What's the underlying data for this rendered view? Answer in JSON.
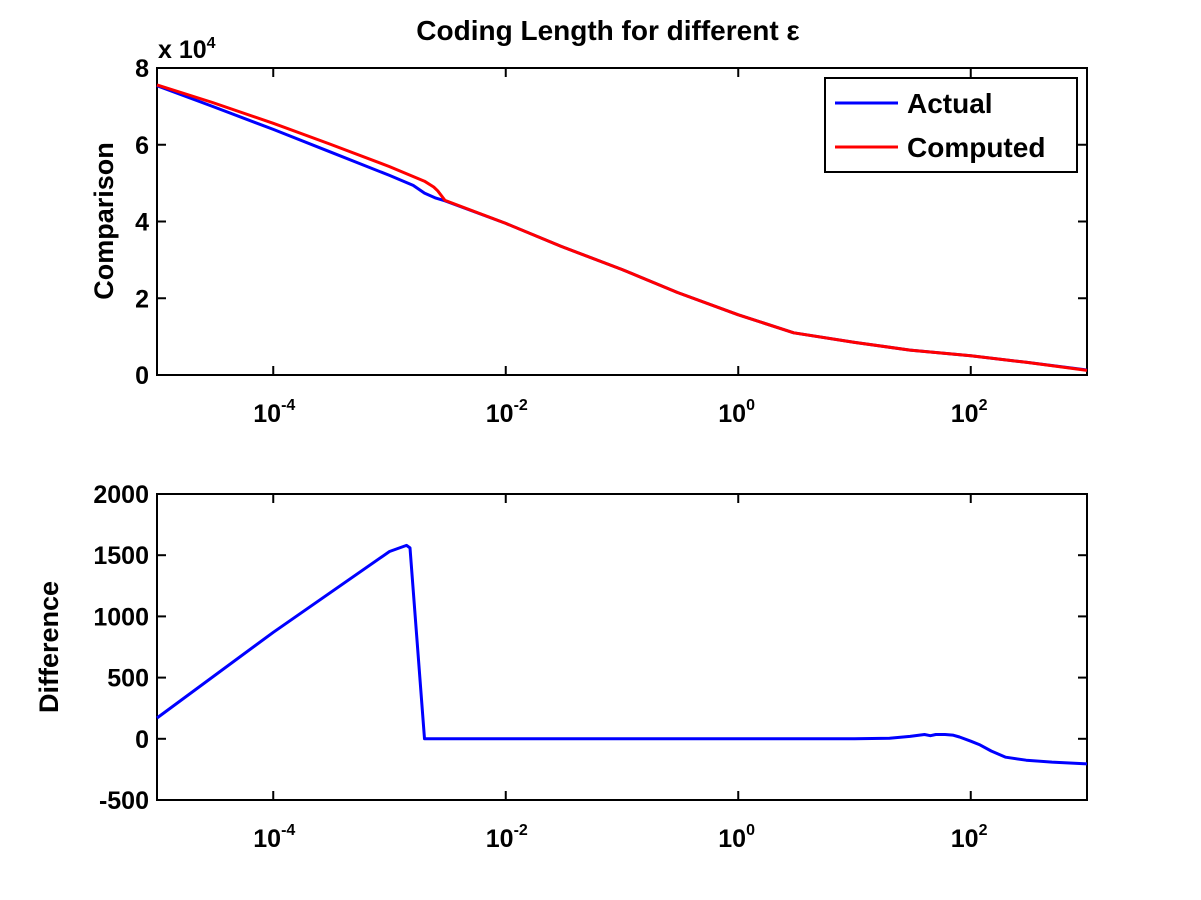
{
  "chart_data": [
    {
      "type": "line",
      "title": "Coding Length for different ε",
      "ylabel": "Comparison",
      "xlabel": "",
      "xscale": "log",
      "xlim": [
        1e-05,
        1000
      ],
      "ylim": [
        0,
        80000
      ],
      "y_multiplier_label": "x 10",
      "y_multiplier_exponent": "4",
      "x_ticks": [
        {
          "value": 0.0001,
          "base": "10",
          "exp": "-4"
        },
        {
          "value": 0.01,
          "base": "10",
          "exp": "-2"
        },
        {
          "value": 1,
          "base": "10",
          "exp": "0"
        },
        {
          "value": 100,
          "base": "10",
          "exp": "2"
        }
      ],
      "y_ticks": [
        {
          "value": 0,
          "label": "0"
        },
        {
          "value": 20000,
          "label": "2"
        },
        {
          "value": 40000,
          "label": "4"
        },
        {
          "value": 60000,
          "label": "6"
        },
        {
          "value": 80000,
          "label": "8"
        }
      ],
      "legend": {
        "placement": "top-right"
      },
      "grid": false,
      "series": [
        {
          "name": "Actual",
          "color": "#0000ff",
          "points": [
            [
              1e-05,
              75400
            ],
            [
              3e-05,
              70000
            ],
            [
              0.0001,
              64000
            ],
            [
              0.0003,
              58300
            ],
            [
              0.001,
              52000
            ],
            [
              0.0016,
              49400
            ],
            [
              0.002,
              47400
            ],
            [
              0.0025,
              46100
            ],
            [
              0.003,
              45400
            ],
            [
              0.01,
              39500
            ],
            [
              0.03,
              33500
            ],
            [
              0.1,
              27500
            ],
            [
              0.3,
              21500
            ],
            [
              1,
              15700
            ],
            [
              3,
              11000
            ],
            [
              10,
              8500
            ],
            [
              30,
              6500
            ],
            [
              100,
              5000
            ],
            [
              300,
              3300
            ],
            [
              1000,
              1300
            ]
          ]
        },
        {
          "name": "Computed",
          "color": "#ff0000",
          "points": [
            [
              1e-05,
              75600
            ],
            [
              3e-05,
              71000
            ],
            [
              0.0001,
              65600
            ],
            [
              0.0003,
              60300
            ],
            [
              0.001,
              54300
            ],
            [
              0.002,
              50500
            ],
            [
              0.0024,
              49000
            ],
            [
              0.0026,
              48000
            ],
            [
              0.003,
              45500
            ],
            [
              0.01,
              39500
            ],
            [
              0.03,
              33500
            ],
            [
              0.1,
              27500
            ],
            [
              0.3,
              21500
            ],
            [
              1,
              15700
            ],
            [
              3,
              11000
            ],
            [
              10,
              8500
            ],
            [
              30,
              6500
            ],
            [
              100,
              5000
            ],
            [
              300,
              3300
            ],
            [
              1000,
              1200
            ]
          ]
        }
      ]
    },
    {
      "type": "line",
      "title": "",
      "ylabel": "Difference",
      "xlabel": "",
      "xscale": "log",
      "xlim": [
        1e-05,
        1000
      ],
      "ylim": [
        -500,
        2000
      ],
      "x_ticks": [
        {
          "value": 0.0001,
          "base": "10",
          "exp": "-4"
        },
        {
          "value": 0.01,
          "base": "10",
          "exp": "-2"
        },
        {
          "value": 1,
          "base": "10",
          "exp": "0"
        },
        {
          "value": 100,
          "base": "10",
          "exp": "2"
        }
      ],
      "y_ticks": [
        {
          "value": -500,
          "label": "-500"
        },
        {
          "value": 0,
          "label": "0"
        },
        {
          "value": 500,
          "label": "500"
        },
        {
          "value": 1000,
          "label": "1000"
        },
        {
          "value": 1500,
          "label": "1500"
        },
        {
          "value": 2000,
          "label": "2000"
        }
      ],
      "grid": false,
      "series": [
        {
          "color": "#0000ff",
          "points": [
            [
              1e-05,
              170
            ],
            [
              0.0001,
              870
            ],
            [
              0.001,
              1530
            ],
            [
              0.0014,
              1580
            ],
            [
              0.0015,
              1560
            ],
            [
              0.002,
              0
            ],
            [
              0.01,
              0
            ],
            [
              0.1,
              0
            ],
            [
              1,
              0
            ],
            [
              10,
              0
            ],
            [
              20,
              5
            ],
            [
              30,
              20
            ],
            [
              40,
              35
            ],
            [
              45,
              25
            ],
            [
              50,
              35
            ],
            [
              60,
              35
            ],
            [
              70,
              30
            ],
            [
              80,
              15
            ],
            [
              100,
              -20
            ],
            [
              120,
              -50
            ],
            [
              150,
              -100
            ],
            [
              200,
              -150
            ],
            [
              300,
              -175
            ],
            [
              500,
              -190
            ],
            [
              1000,
              -205
            ]
          ]
        }
      ]
    }
  ]
}
